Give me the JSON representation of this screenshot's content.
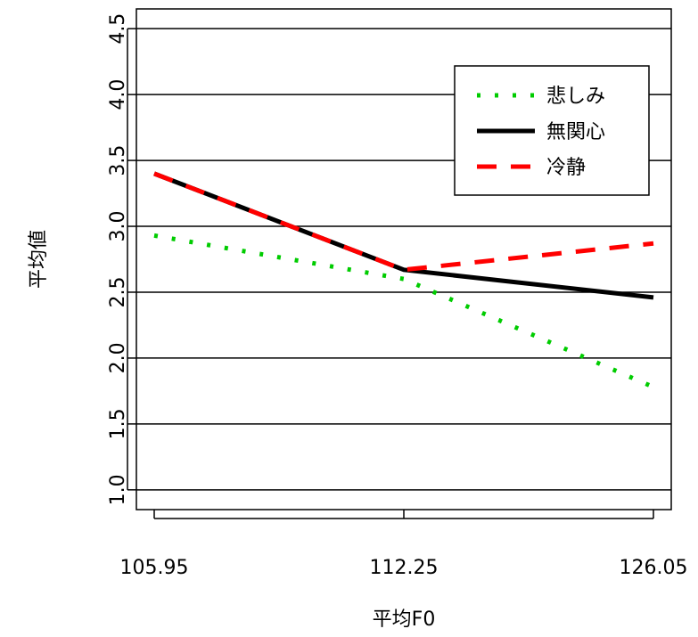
{
  "chart_data": {
    "type": "line",
    "title": "",
    "xlabel": "平均F0",
    "ylabel": "平均値",
    "categories": [
      "105.95",
      "112.25",
      "126.05"
    ],
    "y_ticks": [
      "1.0",
      "1.5",
      "2.0",
      "2.5",
      "3.0",
      "3.5",
      "4.0",
      "4.5"
    ],
    "ylim": [
      0.85,
      4.65
    ],
    "grid": "horizontal",
    "legend_position": "top-right",
    "series": [
      {
        "name": "悲しみ",
        "values": [
          2.93,
          2.6,
          1.78
        ],
        "color": "#00CC00",
        "dash": "dotted"
      },
      {
        "name": "無関心",
        "values": [
          3.4,
          2.67,
          2.46
        ],
        "color": "#000000",
        "dash": "solid"
      },
      {
        "name": "冷静",
        "values": [
          3.4,
          2.67,
          2.87
        ],
        "color": "#FF0000",
        "dash": "dashed"
      }
    ]
  }
}
